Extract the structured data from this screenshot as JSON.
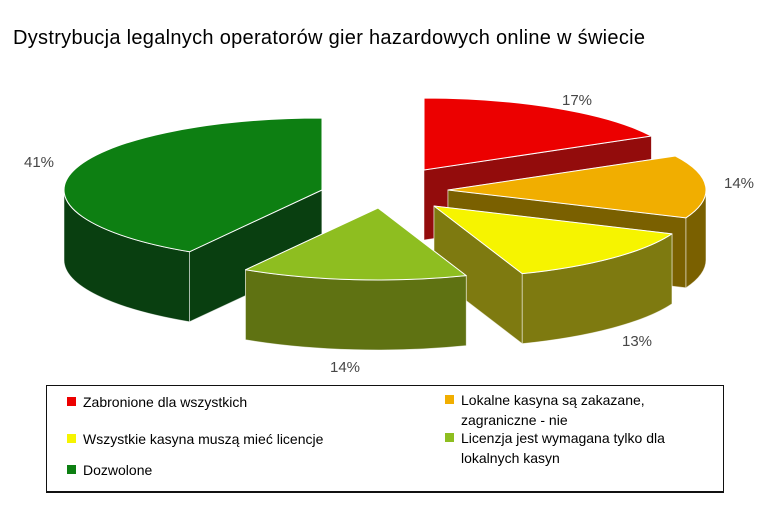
{
  "title": "Dystrybucja legalnych operatorów gier hazardowych online w świecie",
  "chart_data": {
    "type": "pie",
    "is_3d": true,
    "exploded": true,
    "title": "Dystrybucja legalnych operatorów gier hazardowych online w świecie",
    "unit": "%",
    "legend_position": "bottom",
    "legend_columns": [
      [
        0,
        2,
        4
      ],
      [
        1,
        3
      ]
    ],
    "slices": [
      {
        "label": "Zabronione dla wszystkich",
        "value": 17,
        "pct_label": "17%",
        "color_top": "#ec0000",
        "color_side": "#930c0c"
      },
      {
        "label": "Lokalne kasyna są zakazane, zagraniczne - nie",
        "value": 14,
        "pct_label": "14%",
        "color_top": "#f1ae00",
        "color_side": "#7a6000"
      },
      {
        "label": "Wszystkie kasyna muszą mieć licencje",
        "value": 13,
        "pct_label": "13%",
        "color_top": "#f6f400",
        "color_side": "#7e7a10"
      },
      {
        "label": "Licenzja jest wymagana tylko dla lokalnych kasyn",
        "value": 14,
        "pct_label": "14%",
        "color_top": "#8ebe20",
        "color_side": "#5f7212"
      },
      {
        "label": "Dozwolone",
        "value": 41,
        "pct_label": "41%",
        "color_top": "#0d7f12",
        "color_side": "#093f10"
      }
    ]
  }
}
